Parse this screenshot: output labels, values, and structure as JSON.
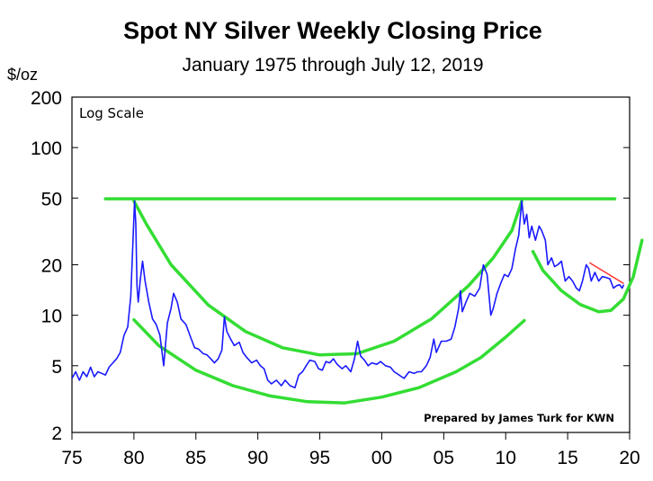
{
  "chart_data": {
    "type": "line",
    "title": "Spot NY Silver Weekly Closing Price",
    "subtitle": "January 1975 through July 12, 2019",
    "ylabel": "$/oz",
    "xlabel": "",
    "yscale": "log",
    "ylim": [
      2,
      200
    ],
    "xlim": [
      1975,
      2020
    ],
    "annotation": "Log Scale",
    "credit": "Prepared by James Turk for KWN",
    "x_ticks": [
      {
        "value": 1975,
        "label": "75"
      },
      {
        "value": 1980,
        "label": "80"
      },
      {
        "value": 1985,
        "label": "85"
      },
      {
        "value": 1990,
        "label": "90"
      },
      {
        "value": 1995,
        "label": "95"
      },
      {
        "value": 2000,
        "label": "00"
      },
      {
        "value": 2005,
        "label": "05"
      },
      {
        "value": 2010,
        "label": "10"
      },
      {
        "value": 2015,
        "label": "15"
      },
      {
        "value": 2020,
        "label": "20"
      }
    ],
    "y_ticks": [
      {
        "value": 200,
        "label": "200"
      },
      {
        "value": 100,
        "label": "100"
      },
      {
        "value": 50,
        "label": "50"
      },
      {
        "value": 20,
        "label": "20"
      },
      {
        "value": 10,
        "label": "10"
      },
      {
        "value": 5,
        "label": "5"
      },
      {
        "value": 2,
        "label": "2"
      }
    ],
    "grid": false,
    "series": [
      {
        "color": "#1a1aff",
        "points": [
          [
            1975.0,
            4.2
          ],
          [
            1975.3,
            4.6
          ],
          [
            1975.6,
            4.1
          ],
          [
            1975.9,
            4.6
          ],
          [
            1976.2,
            4.3
          ],
          [
            1976.5,
            4.9
          ],
          [
            1976.8,
            4.3
          ],
          [
            1977.1,
            4.6
          ],
          [
            1977.4,
            4.5
          ],
          [
            1977.7,
            4.4
          ],
          [
            1978.0,
            4.9
          ],
          [
            1978.3,
            5.2
          ],
          [
            1978.6,
            5.5
          ],
          [
            1978.9,
            6.0
          ],
          [
            1979.2,
            7.6
          ],
          [
            1979.5,
            8.5
          ],
          [
            1979.75,
            13.0
          ],
          [
            1979.9,
            25.0
          ],
          [
            1980.05,
            48.0
          ],
          [
            1980.15,
            35.0
          ],
          [
            1980.25,
            15.0
          ],
          [
            1980.35,
            12.0
          ],
          [
            1980.5,
            16.0
          ],
          [
            1980.7,
            21.0
          ],
          [
            1980.9,
            16.0
          ],
          [
            1981.2,
            12.0
          ],
          [
            1981.5,
            9.5
          ],
          [
            1981.8,
            8.8
          ],
          [
            1982.1,
            7.6
          ],
          [
            1982.4,
            5.0
          ],
          [
            1982.7,
            9.0
          ],
          [
            1983.0,
            11.0
          ],
          [
            1983.2,
            13.5
          ],
          [
            1983.5,
            12.0
          ],
          [
            1983.8,
            9.5
          ],
          [
            1984.2,
            8.8
          ],
          [
            1984.6,
            7.3
          ],
          [
            1984.9,
            6.4
          ],
          [
            1985.2,
            6.3
          ],
          [
            1985.6,
            5.9
          ],
          [
            1985.9,
            5.8
          ],
          [
            1986.2,
            5.5
          ],
          [
            1986.5,
            5.2
          ],
          [
            1986.8,
            5.5
          ],
          [
            1987.1,
            6.2
          ],
          [
            1987.3,
            9.8
          ],
          [
            1987.5,
            8.0
          ],
          [
            1987.8,
            7.2
          ],
          [
            1988.1,
            6.6
          ],
          [
            1988.5,
            6.9
          ],
          [
            1988.8,
            6.0
          ],
          [
            1989.1,
            5.6
          ],
          [
            1989.5,
            5.2
          ],
          [
            1989.9,
            5.4
          ],
          [
            1990.2,
            5.0
          ],
          [
            1990.5,
            4.8
          ],
          [
            1990.8,
            4.1
          ],
          [
            1991.1,
            3.9
          ],
          [
            1991.5,
            4.1
          ],
          [
            1991.9,
            3.8
          ],
          [
            1992.2,
            4.1
          ],
          [
            1992.6,
            3.8
          ],
          [
            1993.0,
            3.7
          ],
          [
            1993.3,
            4.4
          ],
          [
            1993.6,
            4.6
          ],
          [
            1993.9,
            5.0
          ],
          [
            1994.2,
            5.4
          ],
          [
            1994.6,
            5.3
          ],
          [
            1994.9,
            4.8
          ],
          [
            1995.2,
            4.7
          ],
          [
            1995.5,
            5.3
          ],
          [
            1995.8,
            5.2
          ],
          [
            1996.1,
            5.5
          ],
          [
            1996.4,
            5.1
          ],
          [
            1996.8,
            4.8
          ],
          [
            1997.1,
            5.0
          ],
          [
            1997.5,
            4.6
          ],
          [
            1997.8,
            5.5
          ],
          [
            1998.05,
            7.0
          ],
          [
            1998.3,
            5.7
          ],
          [
            1998.6,
            5.4
          ],
          [
            1998.9,
            5.0
          ],
          [
            1999.2,
            5.2
          ],
          [
            1999.6,
            5.1
          ],
          [
            1999.9,
            5.3
          ],
          [
            2000.3,
            5.0
          ],
          [
            2000.7,
            4.9
          ],
          [
            2001.0,
            4.6
          ],
          [
            2001.4,
            4.4
          ],
          [
            2001.8,
            4.2
          ],
          [
            2002.2,
            4.6
          ],
          [
            2002.6,
            4.5
          ],
          [
            2002.9,
            4.6
          ],
          [
            2003.2,
            4.6
          ],
          [
            2003.6,
            5.0
          ],
          [
            2003.9,
            5.6
          ],
          [
            2004.2,
            7.2
          ],
          [
            2004.4,
            6.0
          ],
          [
            2004.8,
            7.0
          ],
          [
            2005.2,
            7.0
          ],
          [
            2005.6,
            7.2
          ],
          [
            2005.9,
            8.5
          ],
          [
            2006.2,
            11.0
          ],
          [
            2006.35,
            14.0
          ],
          [
            2006.5,
            10.5
          ],
          [
            2006.8,
            12.0
          ],
          [
            2007.1,
            13.5
          ],
          [
            2007.5,
            13.0
          ],
          [
            2007.9,
            14.5
          ],
          [
            2008.2,
            20.0
          ],
          [
            2008.5,
            17.5
          ],
          [
            2008.8,
            10.0
          ],
          [
            2009.0,
            11.0
          ],
          [
            2009.3,
            13.5
          ],
          [
            2009.6,
            15.5
          ],
          [
            2009.9,
            17.5
          ],
          [
            2010.2,
            17.0
          ],
          [
            2010.5,
            19.0
          ],
          [
            2010.8,
            25.0
          ],
          [
            2011.05,
            30.0
          ],
          [
            2011.3,
            48.0
          ],
          [
            2011.5,
            35.0
          ],
          [
            2011.7,
            40.0
          ],
          [
            2011.9,
            29.0
          ],
          [
            2012.1,
            34.0
          ],
          [
            2012.4,
            28.0
          ],
          [
            2012.7,
            34.0
          ],
          [
            2012.9,
            32.0
          ],
          [
            2013.2,
            28.0
          ],
          [
            2013.4,
            20.0
          ],
          [
            2013.7,
            22.0
          ],
          [
            2013.95,
            19.5
          ],
          [
            2014.2,
            20.0
          ],
          [
            2014.5,
            21.0
          ],
          [
            2014.8,
            16.0
          ],
          [
            2015.1,
            17.0
          ],
          [
            2015.4,
            16.0
          ],
          [
            2015.7,
            14.5
          ],
          [
            2015.95,
            14.0
          ],
          [
            2016.2,
            16.0
          ],
          [
            2016.5,
            20.0
          ],
          [
            2016.7,
            19.0
          ],
          [
            2016.9,
            16.0
          ],
          [
            2017.2,
            18.0
          ],
          [
            2017.5,
            16.0
          ],
          [
            2017.8,
            17.0
          ],
          [
            2018.1,
            16.8
          ],
          [
            2018.4,
            16.5
          ],
          [
            2018.7,
            14.5
          ],
          [
            2018.95,
            15.0
          ],
          [
            2019.2,
            15.2
          ],
          [
            2019.4,
            14.5
          ],
          [
            2019.53,
            15.2
          ]
        ]
      }
    ],
    "overlays": [
      {
        "kind": "resistance",
        "color": "#33dd33",
        "points": [
          [
            1977.7,
            49.5
          ],
          [
            2018.8,
            49.5
          ]
        ]
      },
      {
        "kind": "upper-arc",
        "color": "#33dd33",
        "points": [
          [
            1980.0,
            48.0
          ],
          [
            1981.0,
            35.0
          ],
          [
            1983.0,
            20.0
          ],
          [
            1986.0,
            11.5
          ],
          [
            1989.0,
            8.0
          ],
          [
            1992.0,
            6.4
          ],
          [
            1995.0,
            5.8
          ],
          [
            1998.0,
            5.9
          ],
          [
            2001.0,
            7.0
          ],
          [
            2004.0,
            9.5
          ],
          [
            2007.0,
            15.0
          ],
          [
            2009.0,
            22.0
          ],
          [
            2010.5,
            32.0
          ],
          [
            2011.3,
            48.0
          ]
        ]
      },
      {
        "kind": "lower-arc",
        "color": "#33dd33",
        "points": [
          [
            1980.0,
            9.4
          ],
          [
            1982.0,
            6.6
          ],
          [
            1985.0,
            4.7
          ],
          [
            1988.0,
            3.8
          ],
          [
            1991.0,
            3.3
          ],
          [
            1994.0,
            3.05
          ],
          [
            1997.0,
            3.0
          ],
          [
            2000.0,
            3.25
          ],
          [
            2003.0,
            3.7
          ],
          [
            2006.0,
            4.6
          ],
          [
            2008.0,
            5.6
          ],
          [
            2010.0,
            7.4
          ],
          [
            2011.5,
            9.3
          ]
        ]
      },
      {
        "kind": "recent-arc",
        "color": "#33dd33",
        "points": [
          [
            2012.2,
            24.0
          ],
          [
            2013.0,
            18.5
          ],
          [
            2014.5,
            14.0
          ],
          [
            2016.0,
            11.6
          ],
          [
            2017.5,
            10.5
          ],
          [
            2018.5,
            10.7
          ],
          [
            2019.5,
            12.5
          ],
          [
            2020.3,
            17.0
          ],
          [
            2021.0,
            28.0
          ]
        ]
      },
      {
        "kind": "trendline",
        "color": "#ff3333",
        "points": [
          [
            2016.8,
            20.5
          ],
          [
            2019.5,
            15.5
          ]
        ]
      }
    ]
  }
}
